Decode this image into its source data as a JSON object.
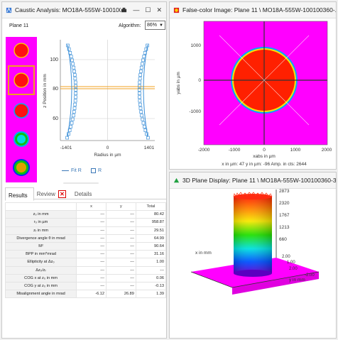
{
  "caustic": {
    "title": "Caustic Analysis: MO18A-555W-10010036...",
    "plane_label": "Plane 11",
    "algorithm_label": "Algorithm:",
    "algorithm_value": "86%",
    "chart": {
      "yaxis_label": "z Position in mm",
      "xaxis_label": "Radius in µm",
      "yticks": [
        "100",
        "80",
        "60"
      ],
      "xticks": [
        "-1401",
        "0",
        "1401"
      ],
      "legend_fit": "Fit R",
      "legend_r": "R"
    },
    "tabs": [
      "Results",
      "Review",
      "Details"
    ],
    "table": {
      "headers": [
        "",
        "x",
        "y",
        "Total"
      ],
      "rows": [
        [
          "z₀ in mm",
          "---",
          "---",
          "80.42"
        ],
        [
          "r₀ in µm",
          "---",
          "---",
          "958.87"
        ],
        [
          "zᵣ in mm",
          "---",
          "---",
          "29.51"
        ],
        [
          "Divergence angle θ in mrad",
          "---",
          "---",
          "64.99"
        ],
        [
          "M²",
          "---",
          "---",
          "90.64"
        ],
        [
          "BPP in mm*mrad",
          "---",
          "---",
          "31.16"
        ],
        [
          "Ellipticity at Δz₀",
          "---",
          "---",
          "1.00"
        ],
        [
          "Δz₀/zᵣ",
          "---",
          "---",
          "---"
        ],
        [
          "COG x at z₀ in mm",
          "---",
          "---",
          "0.06"
        ],
        [
          "COG y at z₀ in mm",
          "---",
          "---",
          "-0.13"
        ],
        [
          "Misalignment angle in mrad",
          "-6.12",
          "26.89",
          "1.39"
        ]
      ]
    }
  },
  "falsecolor": {
    "title": "False-color Image: Plane 11 \\ MO18A-555W-100100360-...",
    "yaxis_label": "yabs in µm",
    "xaxis_label": "xabs in µm",
    "xticks": [
      "-2000",
      "-1000",
      "0",
      "1000",
      "2000"
    ],
    "yticks": [
      "1000",
      "0",
      "-1000"
    ],
    "status": "x in µm:  47   y in µm:  -96   Amp. in cts:  2644"
  },
  "plane3d": {
    "title": "3D Plane Display: Plane 11 \\ MO18A-555W-100100360-3...",
    "zticks": [
      "2873",
      "2320",
      "1767",
      "1213",
      "660"
    ],
    "xaxis_label": "x in mm",
    "yaxis_label": "y in mm",
    "xtick": "2.00",
    "ytick": "2.00",
    "ytick2": "-2.00",
    "ytick3": "1.00"
  }
}
